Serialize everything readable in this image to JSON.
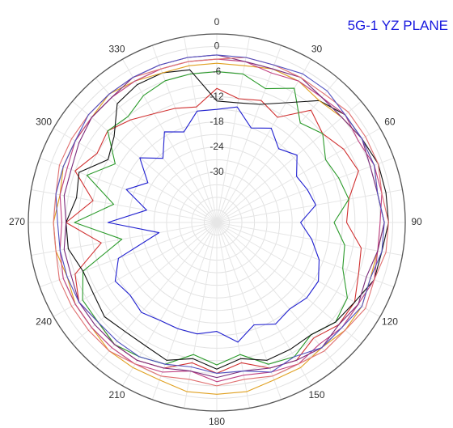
{
  "chart_data": {
    "type": "polar",
    "title": "5G-1  YZ PLANE",
    "angle_ticks": [
      "0",
      "30",
      "60",
      "90",
      "120",
      "150",
      "180",
      "210",
      "240",
      "270",
      "300",
      "330"
    ],
    "radial_ticks": [
      "0",
      "-6",
      "-12",
      "-18",
      "-24",
      "-30"
    ],
    "rlim": [
      -42,
      3
    ],
    "series": [
      {
        "color": "#1f1fd0",
        "values": [
          [
            0,
            -15
          ],
          [
            10,
            -14
          ],
          [
            20,
            -18
          ],
          [
            30,
            -16
          ],
          [
            40,
            -19
          ],
          [
            50,
            -17
          ],
          [
            60,
            -20
          ],
          [
            70,
            -19
          ],
          [
            80,
            -18
          ],
          [
            90,
            -22
          ],
          [
            100,
            -19
          ],
          [
            110,
            -16
          ],
          [
            120,
            -14
          ],
          [
            130,
            -14
          ],
          [
            140,
            -15
          ],
          [
            150,
            -14
          ],
          [
            160,
            -16
          ],
          [
            170,
            -13
          ],
          [
            180,
            -16
          ],
          [
            190,
            -15
          ],
          [
            200,
            -15
          ],
          [
            210,
            -15
          ],
          [
            220,
            -14
          ],
          [
            230,
            -15
          ],
          [
            240,
            -14
          ],
          [
            250,
            -17
          ],
          [
            260,
            -28
          ],
          [
            270,
            -16
          ],
          [
            280,
            -25
          ],
          [
            290,
            -19
          ],
          [
            300,
            -23
          ],
          [
            310,
            -18
          ],
          [
            320,
            -22
          ],
          [
            330,
            -17
          ],
          [
            340,
            -19
          ],
          [
            350,
            -15
          ]
        ]
      },
      {
        "color": "#d03030",
        "values": [
          [
            0,
            -10
          ],
          [
            10,
            -12
          ],
          [
            20,
            -11
          ],
          [
            30,
            -13
          ],
          [
            40,
            -7
          ],
          [
            50,
            -9
          ],
          [
            60,
            -7
          ],
          [
            70,
            -6
          ],
          [
            80,
            -10
          ],
          [
            90,
            -11
          ],
          [
            100,
            -7
          ],
          [
            110,
            -6
          ],
          [
            120,
            -4
          ],
          [
            130,
            -4
          ],
          [
            140,
            -6
          ],
          [
            150,
            -4
          ],
          [
            160,
            -5
          ],
          [
            170,
            -8
          ],
          [
            180,
            -6
          ],
          [
            190,
            -8
          ],
          [
            200,
            -5
          ],
          [
            210,
            -4
          ],
          [
            220,
            -4
          ],
          [
            230,
            -5
          ],
          [
            240,
            -4
          ],
          [
            250,
            -6
          ],
          [
            260,
            -14
          ],
          [
            270,
            -6
          ],
          [
            280,
            -12
          ],
          [
            290,
            -6
          ],
          [
            300,
            -9
          ],
          [
            310,
            -8
          ],
          [
            320,
            -10
          ],
          [
            330,
            -12
          ],
          [
            340,
            -13
          ],
          [
            350,
            -14
          ]
        ]
      },
      {
        "color": "#2a9a2a",
        "values": [
          [
            0,
            -6
          ],
          [
            10,
            -6
          ],
          [
            20,
            -8
          ],
          [
            30,
            -5
          ],
          [
            40,
            -11
          ],
          [
            50,
            -9
          ],
          [
            60,
            -12
          ],
          [
            70,
            -11
          ],
          [
            80,
            -10
          ],
          [
            90,
            -14
          ],
          [
            100,
            -11
          ],
          [
            110,
            -10
          ],
          [
            120,
            -6
          ],
          [
            130,
            -5
          ],
          [
            140,
            -7
          ],
          [
            150,
            -5
          ],
          [
            160,
            -6
          ],
          [
            170,
            -10
          ],
          [
            180,
            -8
          ],
          [
            190,
            -10
          ],
          [
            200,
            -6
          ],
          [
            210,
            -5
          ],
          [
            220,
            -4
          ],
          [
            230,
            -5
          ],
          [
            240,
            -5
          ],
          [
            250,
            -8
          ],
          [
            260,
            -19
          ],
          [
            270,
            -8
          ],
          [
            280,
            -17
          ],
          [
            290,
            -9
          ],
          [
            300,
            -14
          ],
          [
            310,
            -8
          ],
          [
            320,
            -9
          ],
          [
            330,
            -7
          ],
          [
            340,
            -6
          ],
          [
            350,
            -6
          ]
        ]
      },
      {
        "color": "#101010",
        "values": [
          [
            0,
            -13
          ],
          [
            10,
            -13
          ],
          [
            20,
            -12
          ],
          [
            30,
            -9
          ],
          [
            40,
            -4
          ],
          [
            50,
            -2
          ],
          [
            60,
            -2
          ],
          [
            70,
            -1
          ],
          [
            80,
            -1
          ],
          [
            90,
            -1
          ],
          [
            100,
            -2
          ],
          [
            110,
            -2
          ],
          [
            120,
            -4
          ],
          [
            130,
            -5
          ],
          [
            140,
            -7
          ],
          [
            150,
            -7
          ],
          [
            160,
            -7
          ],
          [
            170,
            -9
          ],
          [
            180,
            -7
          ],
          [
            190,
            -9
          ],
          [
            200,
            -7
          ],
          [
            210,
            -8
          ],
          [
            220,
            -8
          ],
          [
            230,
            -7
          ],
          [
            240,
            -8
          ],
          [
            250,
            -8
          ],
          [
            260,
            -6
          ],
          [
            270,
            -6
          ],
          [
            280,
            -8
          ],
          [
            290,
            -7
          ],
          [
            300,
            -12
          ],
          [
            310,
            -10
          ],
          [
            320,
            -5
          ],
          [
            330,
            -4
          ],
          [
            340,
            -4
          ],
          [
            350,
            -5
          ]
        ]
      },
      {
        "color": "#e0a020",
        "values": [
          [
            0,
            -4
          ],
          [
            10,
            -4
          ],
          [
            20,
            -3
          ],
          [
            30,
            -3
          ],
          [
            40,
            -4
          ],
          [
            50,
            -3
          ],
          [
            60,
            -2
          ],
          [
            70,
            -2
          ],
          [
            80,
            -3
          ],
          [
            90,
            -2
          ],
          [
            100,
            -3
          ],
          [
            110,
            -3
          ],
          [
            120,
            -2
          ],
          [
            130,
            -2
          ],
          [
            140,
            -3
          ],
          [
            150,
            -2
          ],
          [
            160,
            -2
          ],
          [
            170,
            -1
          ],
          [
            180,
            -1
          ],
          [
            190,
            -1
          ],
          [
            200,
            -2
          ],
          [
            210,
            -2
          ],
          [
            220,
            -2
          ],
          [
            230,
            -3
          ],
          [
            240,
            -3
          ],
          [
            250,
            -4
          ],
          [
            260,
            -3
          ],
          [
            270,
            -3
          ],
          [
            280,
            -4
          ],
          [
            290,
            -3
          ],
          [
            300,
            -3
          ],
          [
            310,
            -3
          ],
          [
            320,
            -2
          ],
          [
            330,
            -3
          ],
          [
            340,
            -4
          ],
          [
            350,
            -4
          ]
        ]
      },
      {
        "color": "#c04080",
        "values": [
          [
            0,
            -3
          ],
          [
            10,
            -3
          ],
          [
            20,
            -4
          ],
          [
            30,
            -3
          ],
          [
            40,
            -3
          ],
          [
            50,
            -2
          ],
          [
            60,
            -3
          ],
          [
            70,
            -2
          ],
          [
            80,
            -2
          ],
          [
            90,
            -3
          ],
          [
            100,
            -3
          ],
          [
            110,
            -2
          ],
          [
            120,
            -3
          ],
          [
            130,
            -3
          ],
          [
            140,
            -4
          ],
          [
            150,
            -3
          ],
          [
            160,
            -4
          ],
          [
            170,
            -5
          ],
          [
            180,
            -4
          ],
          [
            190,
            -6
          ],
          [
            200,
            -4
          ],
          [
            210,
            -3
          ],
          [
            220,
            -3
          ],
          [
            230,
            -3
          ],
          [
            240,
            -3
          ],
          [
            250,
            -3
          ],
          [
            260,
            -4
          ],
          [
            270,
            -5
          ],
          [
            280,
            -4
          ],
          [
            290,
            -4
          ],
          [
            300,
            -3
          ],
          [
            310,
            -3
          ],
          [
            320,
            -3
          ],
          [
            330,
            -3
          ],
          [
            340,
            -3
          ],
          [
            350,
            -3
          ]
        ]
      },
      {
        "color": "#7a2a7a",
        "values": [
          [
            0,
            -2
          ],
          [
            10,
            -3
          ],
          [
            20,
            -3
          ],
          [
            30,
            -2
          ],
          [
            40,
            -3
          ],
          [
            50,
            -3
          ],
          [
            60,
            -2
          ],
          [
            70,
            -3
          ],
          [
            80,
            -3
          ],
          [
            90,
            -2
          ],
          [
            100,
            -3
          ],
          [
            110,
            -4
          ],
          [
            120,
            -3
          ],
          [
            130,
            -4
          ],
          [
            140,
            -3
          ],
          [
            150,
            -4
          ],
          [
            160,
            -5
          ],
          [
            170,
            -6
          ],
          [
            180,
            -5
          ],
          [
            190,
            -6
          ],
          [
            200,
            -5
          ],
          [
            210,
            -4
          ],
          [
            220,
            -4
          ],
          [
            230,
            -4
          ],
          [
            240,
            -4
          ],
          [
            250,
            -5
          ],
          [
            260,
            -5
          ],
          [
            270,
            -6
          ],
          [
            280,
            -5
          ],
          [
            290,
            -5
          ],
          [
            300,
            -4
          ],
          [
            310,
            -3
          ],
          [
            320,
            -3
          ],
          [
            330,
            -2
          ],
          [
            340,
            -2
          ],
          [
            350,
            -2
          ]
        ]
      },
      {
        "color": "#e07070",
        "values": [
          [
            0,
            -3
          ],
          [
            10,
            -2
          ],
          [
            20,
            -2
          ],
          [
            30,
            -2
          ],
          [
            40,
            -2
          ],
          [
            50,
            -1
          ],
          [
            60,
            -1
          ],
          [
            70,
            -1
          ],
          [
            80,
            -2
          ],
          [
            90,
            -1
          ],
          [
            100,
            -1
          ],
          [
            110,
            -2
          ],
          [
            120,
            -1
          ],
          [
            130,
            -2
          ],
          [
            140,
            -2
          ],
          [
            150,
            -3
          ],
          [
            160,
            -3
          ],
          [
            170,
            -4
          ],
          [
            180,
            -3
          ],
          [
            190,
            -4
          ],
          [
            200,
            -3
          ],
          [
            210,
            -3
          ],
          [
            220,
            -2
          ],
          [
            230,
            -2
          ],
          [
            240,
            -2
          ],
          [
            250,
            -2
          ],
          [
            260,
            -3
          ],
          [
            270,
            -3
          ],
          [
            280,
            -3
          ],
          [
            290,
            -2
          ],
          [
            300,
            -2
          ],
          [
            310,
            -2
          ],
          [
            320,
            -2
          ],
          [
            330,
            -2
          ],
          [
            340,
            -3
          ],
          [
            350,
            -3
          ]
        ]
      },
      {
        "color": "#5050c0",
        "values": [
          [
            0,
            -2
          ],
          [
            10,
            -2
          ],
          [
            20,
            -2
          ],
          [
            30,
            -1
          ],
          [
            40,
            -1
          ],
          [
            50,
            -2
          ],
          [
            60,
            -2
          ],
          [
            70,
            -2
          ],
          [
            80,
            -3
          ],
          [
            90,
            -2
          ],
          [
            100,
            -2
          ],
          [
            110,
            -3
          ],
          [
            120,
            -2
          ],
          [
            130,
            -3
          ],
          [
            140,
            -3
          ],
          [
            150,
            -5
          ],
          [
            160,
            -4
          ],
          [
            170,
            -6
          ],
          [
            180,
            -6
          ],
          [
            190,
            -7
          ],
          [
            200,
            -6
          ],
          [
            210,
            -5
          ],
          [
            220,
            -5
          ],
          [
            230,
            -5
          ],
          [
            240,
            -4
          ],
          [
            250,
            -4
          ],
          [
            260,
            -4
          ],
          [
            270,
            -4
          ],
          [
            280,
            -3
          ],
          [
            290,
            -3
          ],
          [
            300,
            -3
          ],
          [
            310,
            -2
          ],
          [
            320,
            -2
          ],
          [
            330,
            -2
          ],
          [
            340,
            -2
          ],
          [
            350,
            -2
          ]
        ]
      }
    ]
  }
}
